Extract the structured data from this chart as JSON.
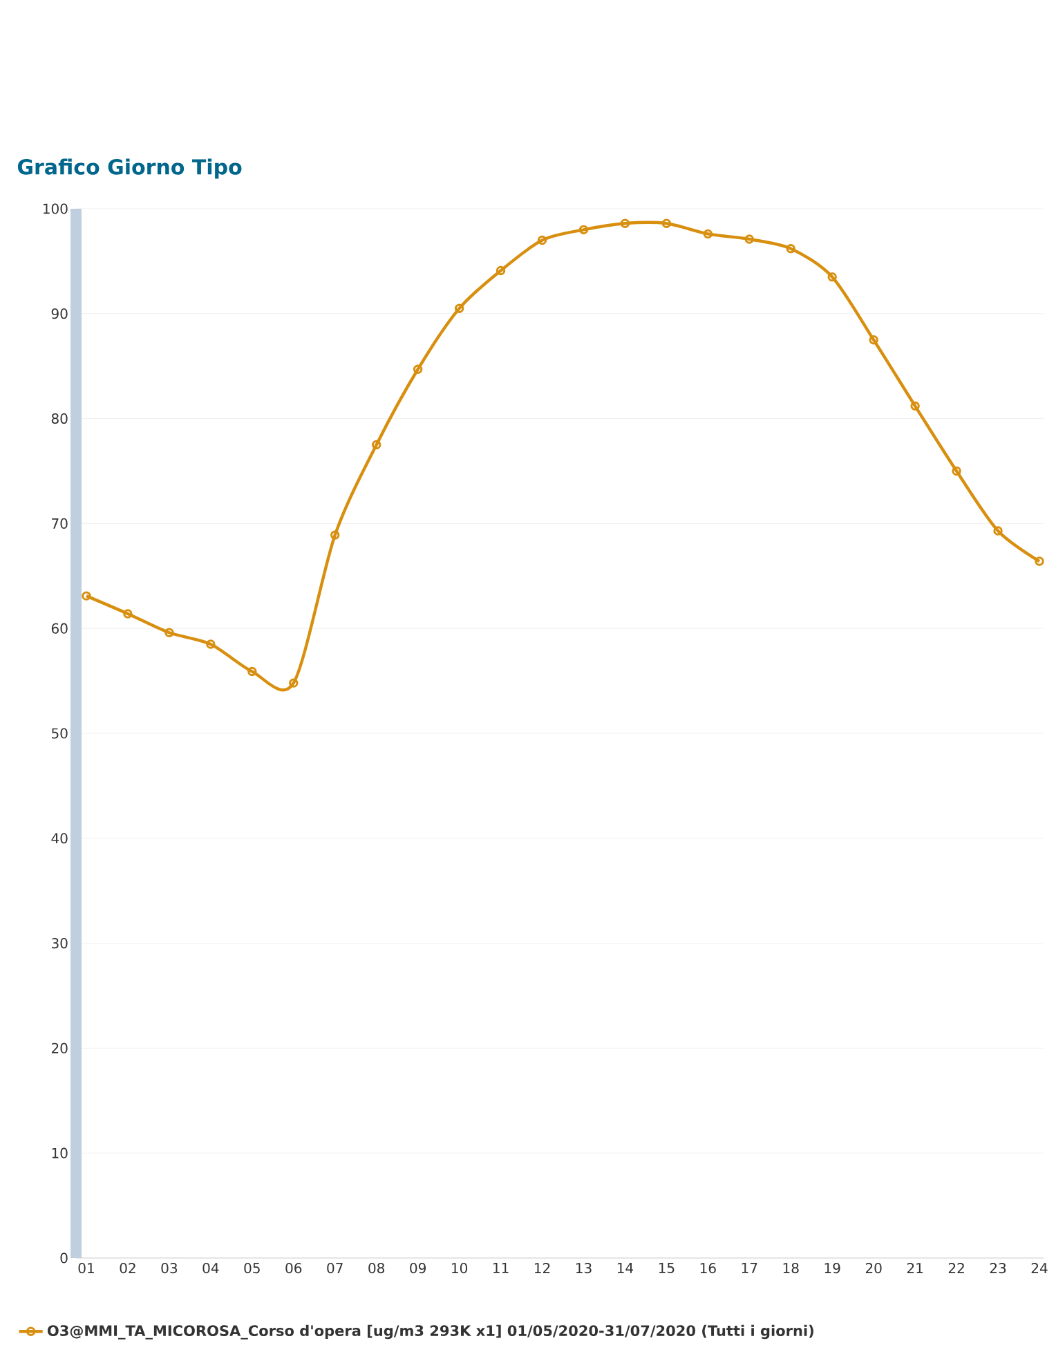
{
  "chart_data": {
    "type": "line",
    "title": "Grafico Giorno Tipo",
    "categories": [
      "01",
      "02",
      "03",
      "04",
      "05",
      "06",
      "07",
      "08",
      "09",
      "10",
      "11",
      "12",
      "13",
      "14",
      "15",
      "16",
      "17",
      "18",
      "19",
      "20",
      "21",
      "22",
      "23",
      "24"
    ],
    "series": [
      {
        "name": "O3@MMI_TA_MICOROSA_Corso d'opera [ug/m3 293K x1] 01/05/2020-31/07/2020 (Tutti i giorni)",
        "color": "#d88f0f",
        "values": [
          63.1,
          61.4,
          59.6,
          58.5,
          55.9,
          54.8,
          68.9,
          77.5,
          84.7,
          90.5,
          94.1,
          97.0,
          98.0,
          98.6,
          98.6,
          97.6,
          97.1,
          96.2,
          93.5,
          87.5,
          81.2,
          75.0,
          69.3,
          66.4
        ]
      }
    ],
    "ylim": [
      0,
      100
    ],
    "yticks": [
      0,
      10,
      20,
      30,
      40,
      50,
      60,
      70,
      80,
      90,
      100
    ],
    "grid": "y",
    "legend": "bottom",
    "marker": "circle",
    "line_style": "solid"
  }
}
